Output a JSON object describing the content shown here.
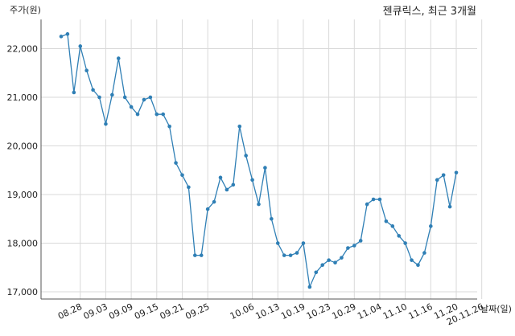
{
  "chart_data": {
    "type": "line",
    "title": "젠큐릭스, 최근 3개월",
    "ylabel": "주가(원)",
    "xlabel": "날짜(일)",
    "ylim": [
      17000,
      22500
    ],
    "yticks": [
      17000,
      18000,
      19000,
      20000,
      21000,
      22000
    ],
    "ytick_labels": [
      "17,000",
      "18,000",
      "19,000",
      "20,000",
      "21,000",
      "22,000"
    ],
    "xtick_labels": [
      "08.28",
      "09.03",
      "09.09",
      "09.15",
      "09.21",
      "09.25",
      "10.06",
      "10.13",
      "10.19",
      "10.23",
      "10.29",
      "11.04",
      "11.10",
      "11.16",
      "11.20",
      "20.11.26"
    ],
    "xtick_indices": [
      3,
      7,
      11,
      15,
      19,
      23,
      30,
      34,
      38,
      42,
      46,
      50,
      54,
      58,
      62,
      66
    ],
    "grid": true,
    "line_color": "#2f7fb5",
    "series": [
      {
        "values": [
          22250,
          22300,
          21100,
          22050,
          21550,
          21150,
          21000,
          20450,
          21050,
          21800,
          21000,
          20800,
          20650,
          20950,
          21000,
          20650,
          20650,
          20400,
          19650,
          19400,
          19150,
          17750,
          17750,
          18700,
          18850,
          19350,
          19100,
          19200,
          20400,
          19800,
          19300,
          18800,
          19550,
          18500,
          18000,
          17750,
          17750,
          17800,
          18000,
          17100,
          17400,
          17550,
          17650,
          17600,
          17700,
          17900,
          17950,
          18050,
          18800,
          18900,
          18900,
          18450,
          18350,
          18150,
          18000,
          17650,
          17550,
          17800,
          18350,
          19300,
          19400,
          18750,
          19450
        ]
      }
    ]
  }
}
